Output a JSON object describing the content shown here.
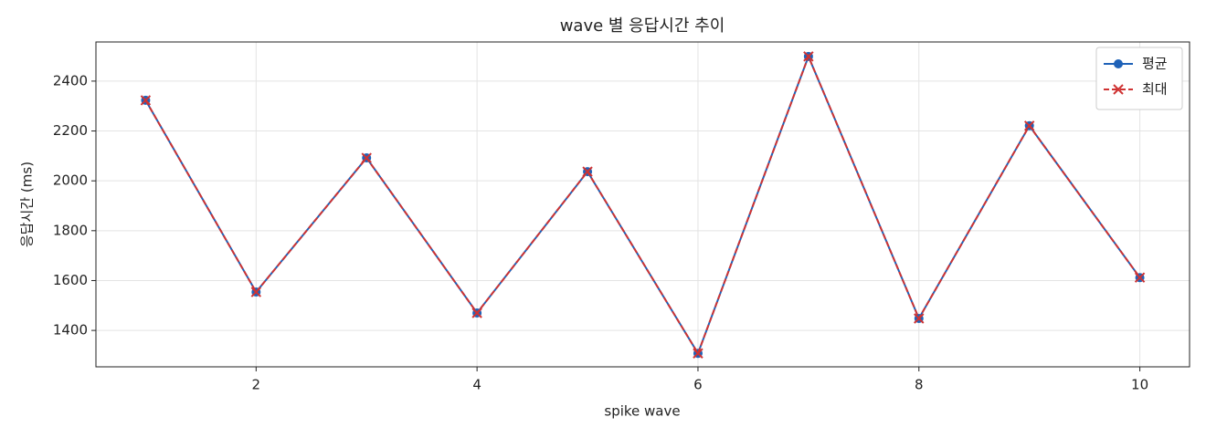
{
  "chart_data": {
    "type": "line",
    "title": "wave 별 응답시간 추이",
    "x_label": "spike wave",
    "y_label": "응답시간 (ms)",
    "x": [
      1,
      2,
      3,
      4,
      5,
      6,
      7,
      8,
      9,
      10
    ],
    "series": [
      {
        "name": "평균",
        "color": "#1f62b8",
        "marker": "circle",
        "dash": "solid",
        "values": [
          2323,
          1554,
          2092,
          1470,
          2037,
          1308,
          2499,
          1448,
          2221,
          1612
        ]
      },
      {
        "name": "최대",
        "color": "#cf3333",
        "marker": "x",
        "dash": "dashed",
        "values": [
          2323,
          1554,
          2092,
          1470,
          2037,
          1308,
          2499,
          1448,
          2221,
          1612
        ]
      }
    ],
    "xlim": [
      0.55,
      10.45
    ],
    "xticks": [
      2,
      4,
      6,
      8,
      10
    ],
    "ylim": [
      1254,
      2557
    ],
    "yticks": [
      1400,
      1600,
      1800,
      2000,
      2200,
      2400
    ],
    "grid": true,
    "legend": "upper right"
  }
}
